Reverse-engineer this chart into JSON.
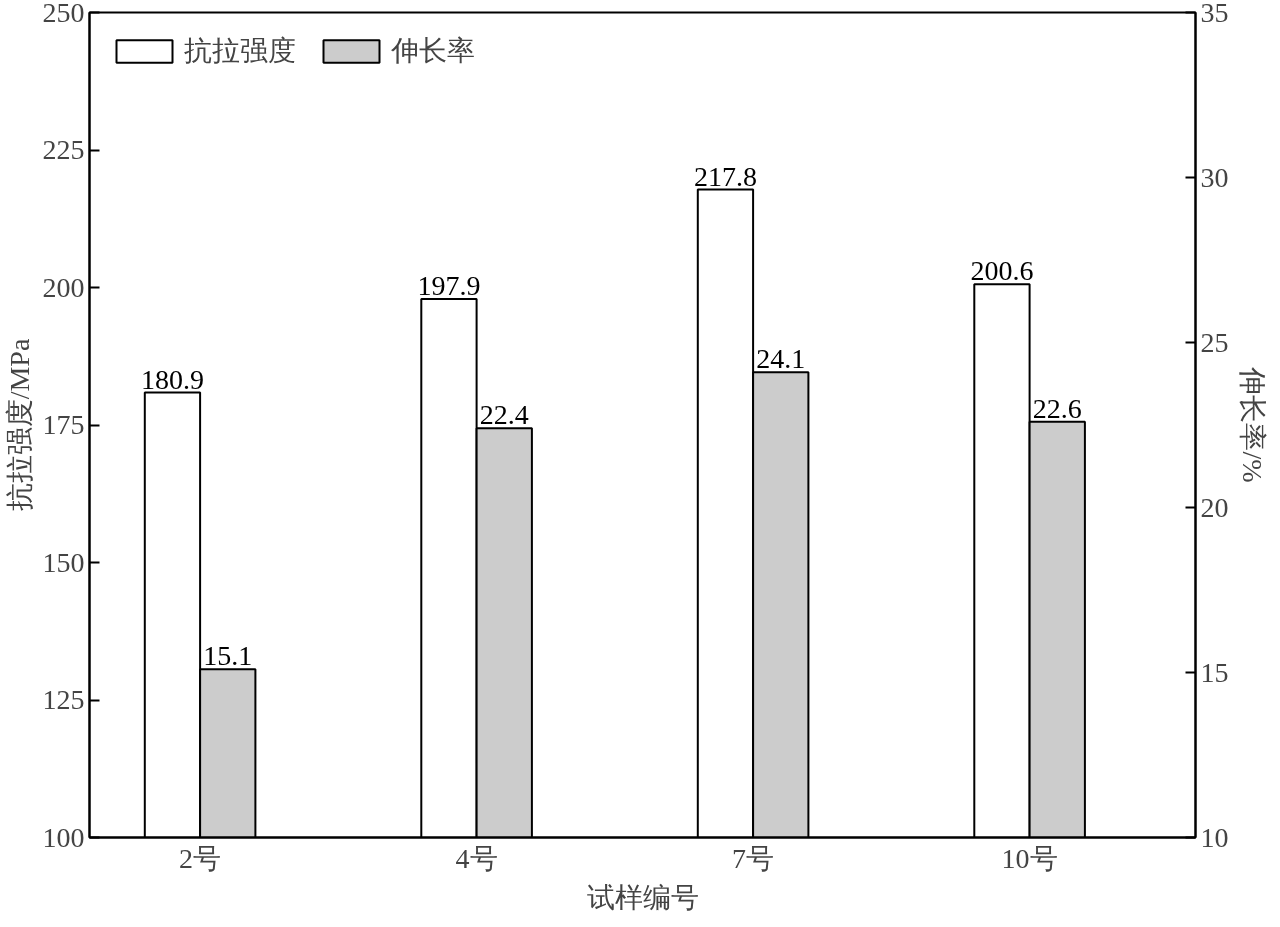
{
  "chart_data": {
    "type": "bar",
    "xlabel": "试样编号",
    "ylabel": "抗拉强度/MPa",
    "y2label": "伸长率/%",
    "categories": [
      "2号",
      "4号",
      "7号",
      "10号"
    ],
    "series": [
      {
        "name": "抗拉强度",
        "color": "#ffffff",
        "values": [
          180.9,
          197.9,
          217.8,
          200.6
        ]
      },
      {
        "name": "伸长率",
        "color": "#cccccc",
        "axis": "y2",
        "values": [
          15.1,
          22.4,
          24.1,
          22.6
        ]
      }
    ],
    "ylim": [
      100,
      250
    ],
    "yticks": [
      100,
      125,
      150,
      175,
      200,
      225,
      250
    ],
    "y2lim": [
      10,
      35
    ],
    "y2ticks": [
      10,
      15,
      20,
      25,
      30,
      35
    ],
    "data_labels": true,
    "legend": "top left",
    "grid": false
  }
}
